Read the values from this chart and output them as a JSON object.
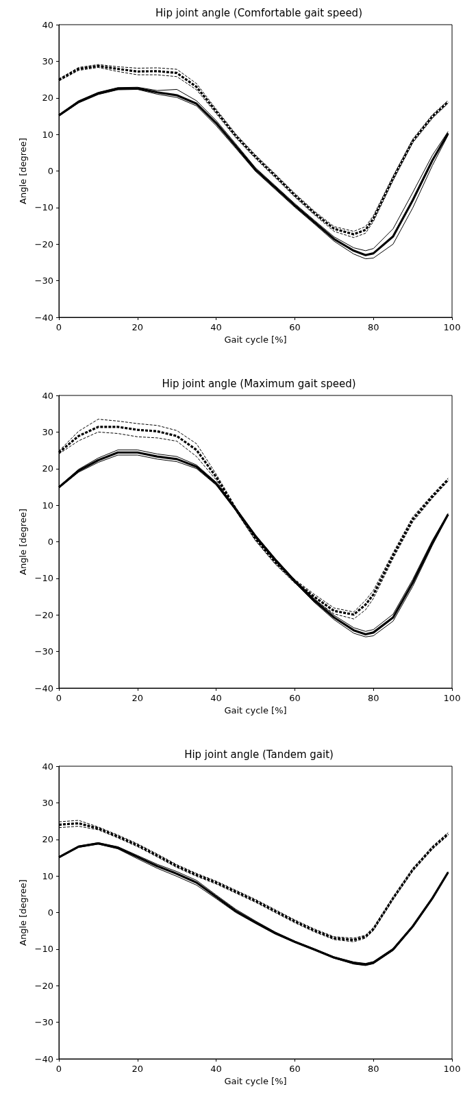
{
  "chart_data": [
    {
      "type": "line",
      "title": "Hip joint angle (Comfortable gait speed)",
      "xlabel": "Gait cycle [%]",
      "ylabel": "Angle [degree]",
      "x": [
        0,
        5,
        10,
        15,
        20,
        25,
        30,
        35,
        40,
        45,
        50,
        55,
        60,
        65,
        70,
        75,
        78,
        80,
        85,
        90,
        95,
        99
      ],
      "xlim": [
        0,
        100
      ],
      "xticks": [
        0,
        20,
        40,
        60,
        80,
        100
      ],
      "ylim": [
        -40,
        40
      ],
      "yticks": [
        -40,
        -30,
        -20,
        -10,
        0,
        10,
        20,
        30,
        40
      ],
      "marker": "none",
      "series": [
        {
          "color": "#000000",
          "line_style": "solid",
          "values": [
            15.2,
            18.9,
            21.2,
            22.5,
            22.6,
            21.5,
            20.7,
            18.4,
            13.1,
            6.8,
            0.4,
            -4.5,
            -9.4,
            -14.0,
            -18.6,
            -21.8,
            -23.0,
            -22.5,
            -17.9,
            -8.0,
            2.9,
            10.3
          ]
        },
        {
          "color": "#000000",
          "line_style": "solid",
          "values": [
            15.0,
            18.6,
            20.9,
            22.2,
            22.3,
            21.0,
            20.1,
            17.8,
            12.4,
            6.2,
            -0.1,
            -5.0,
            -9.9,
            -14.5,
            -19.2,
            -22.7,
            -24.0,
            -23.8,
            -20.0,
            -10.1,
            1.5,
            9.8
          ]
        },
        {
          "color": "#000000",
          "line_style": "solid",
          "values": [
            15.4,
            19.2,
            21.5,
            22.8,
            22.9,
            22.0,
            22.3,
            19.2,
            13.8,
            7.4,
            0.9,
            -4.0,
            -8.9,
            -13.5,
            -18.0,
            -21.0,
            -21.8,
            -21.2,
            -15.8,
            -5.9,
            4.3,
            10.8
          ]
        },
        {
          "color": "#000000",
          "line_style": "dashed",
          "values": [
            24.9,
            27.9,
            28.7,
            27.9,
            27.2,
            27.3,
            26.8,
            23.0,
            16.3,
            9.6,
            3.9,
            -1.3,
            -6.6,
            -11.5,
            -15.8,
            -17.3,
            -16.1,
            -13.0,
            -2.0,
            8.2,
            14.9,
            18.9
          ]
        },
        {
          "color": "#000000",
          "line_style": "dashed",
          "values": [
            24.6,
            27.5,
            28.3,
            27.2,
            26.3,
            26.3,
            25.8,
            22.2,
            15.7,
            9.1,
            3.4,
            -1.8,
            -7.1,
            -12.0,
            -16.5,
            -18.2,
            -17.0,
            -13.8,
            -2.6,
            7.7,
            14.4,
            18.5
          ]
        },
        {
          "color": "#000000",
          "line_style": "dashed",
          "values": [
            25.2,
            28.3,
            29.1,
            28.5,
            28.1,
            28.2,
            27.8,
            23.9,
            16.9,
            10.1,
            4.4,
            -0.8,
            -6.1,
            -11.0,
            -15.2,
            -16.5,
            -15.2,
            -12.2,
            -1.4,
            8.7,
            15.4,
            19.3
          ]
        }
      ]
    },
    {
      "type": "line",
      "title": "Hip joint angle (Maximum gait speed)",
      "xlabel": "Gait cycle [%]",
      "ylabel": "Angle [degree]",
      "x": [
        0,
        5,
        10,
        15,
        20,
        25,
        30,
        35,
        40,
        45,
        50,
        55,
        60,
        65,
        70,
        75,
        78,
        80,
        85,
        90,
        95,
        99
      ],
      "xlim": [
        0,
        100
      ],
      "xticks": [
        0,
        20,
        40,
        60,
        80,
        100
      ],
      "ylim": [
        -40,
        40
      ],
      "yticks": [
        -40,
        -30,
        -20,
        -10,
        0,
        10,
        20,
        30,
        40
      ],
      "marker": "none",
      "series": [
        {
          "color": "#000000",
          "line_style": "solid",
          "values": [
            14.9,
            19.4,
            22.3,
            24.4,
            24.4,
            23.3,
            22.6,
            20.5,
            15.9,
            8.9,
            1.5,
            -4.9,
            -10.8,
            -16.1,
            -20.7,
            -24.2,
            -25.3,
            -24.8,
            -20.7,
            -11.2,
            -0.3,
            7.5
          ]
        },
        {
          "color": "#000000",
          "line_style": "solid",
          "values": [
            14.7,
            19.0,
            21.7,
            23.7,
            23.7,
            22.6,
            21.9,
            20.0,
            15.5,
            8.5,
            1.1,
            -5.3,
            -11.2,
            -16.6,
            -21.3,
            -25.0,
            -26.0,
            -25.7,
            -21.7,
            -12.2,
            -1.0,
            7.2
          ]
        },
        {
          "color": "#000000",
          "line_style": "solid",
          "values": [
            15.1,
            19.8,
            22.9,
            25.1,
            25.1,
            24.0,
            23.3,
            21.0,
            16.3,
            9.3,
            1.9,
            -4.5,
            -10.4,
            -15.6,
            -20.1,
            -23.5,
            -24.5,
            -24.0,
            -19.8,
            -10.3,
            0.4,
            7.8
          ]
        },
        {
          "color": "#000000",
          "line_style": "dashed",
          "values": [
            24.4,
            28.9,
            31.4,
            31.4,
            30.6,
            30.2,
            28.9,
            25.1,
            17.7,
            8.9,
            0.8,
            -5.6,
            -10.8,
            -15.1,
            -18.9,
            -19.9,
            -17.2,
            -14.4,
            -3.8,
            6.1,
            12.4,
            17.0
          ]
        },
        {
          "color": "#000000",
          "line_style": "dashed",
          "values": [
            24.0,
            27.6,
            30.0,
            29.6,
            28.7,
            28.4,
            27.5,
            23.3,
            16.9,
            8.4,
            0.3,
            -6.1,
            -11.3,
            -15.8,
            -19.7,
            -21.1,
            -18.6,
            -15.5,
            -4.6,
            5.4,
            11.9,
            16.6
          ]
        },
        {
          "color": "#000000",
          "line_style": "dashed",
          "values": [
            24.8,
            30.2,
            33.5,
            33.0,
            32.3,
            31.8,
            30.4,
            26.8,
            18.5,
            9.4,
            1.3,
            -5.1,
            -10.3,
            -14.4,
            -18.1,
            -19.2,
            -16.0,
            -13.3,
            -3.0,
            6.8,
            12.9,
            17.4
          ]
        }
      ]
    },
    {
      "type": "line",
      "title": "Hip joint angle (Tandem gait)",
      "xlabel": "Gait cycle [%]",
      "ylabel": "Angle [degree]",
      "x": [
        0,
        5,
        10,
        15,
        20,
        25,
        30,
        35,
        40,
        45,
        50,
        55,
        60,
        65,
        70,
        75,
        78,
        80,
        85,
        90,
        95,
        99
      ],
      "xlim": [
        0,
        100
      ],
      "xticks": [
        0,
        20,
        40,
        60,
        80,
        100
      ],
      "ylim": [
        -40,
        40
      ],
      "yticks": [
        -40,
        -30,
        -20,
        -10,
        0,
        10,
        20,
        30,
        40
      ],
      "marker": "none",
      "series": [
        {
          "color": "#000000",
          "line_style": "solid",
          "values": [
            15.1,
            18.0,
            18.9,
            17.7,
            15.2,
            12.7,
            10.6,
            8.2,
            4.3,
            0.4,
            -2.7,
            -5.6,
            -8.0,
            -10.1,
            -12.3,
            -13.8,
            -14.2,
            -13.7,
            -10.1,
            -3.8,
            3.9,
            11.0
          ]
        },
        {
          "color": "#000000",
          "line_style": "solid",
          "values": [
            14.9,
            17.8,
            18.7,
            17.4,
            14.7,
            12.1,
            9.9,
            7.5,
            3.8,
            0.0,
            -3.0,
            -5.9,
            -8.2,
            -10.3,
            -12.5,
            -14.1,
            -14.5,
            -14.0,
            -10.4,
            -4.1,
            3.6,
            10.8
          ]
        },
        {
          "color": "#000000",
          "line_style": "solid",
          "values": [
            15.3,
            18.2,
            19.1,
            18.0,
            15.6,
            13.2,
            11.2,
            8.8,
            4.8,
            0.9,
            -2.3,
            -5.3,
            -7.8,
            -9.9,
            -12.1,
            -13.5,
            -13.9,
            -13.4,
            -9.8,
            -3.5,
            4.2,
            11.2
          ]
        },
        {
          "color": "#000000",
          "line_style": "dashed",
          "values": [
            24.0,
            24.4,
            23.0,
            20.8,
            18.4,
            15.6,
            12.7,
            10.3,
            8.2,
            5.7,
            3.2,
            0.4,
            -2.4,
            -4.9,
            -7.0,
            -7.5,
            -6.6,
            -4.5,
            3.9,
            11.7,
            17.7,
            21.5
          ]
        },
        {
          "color": "#000000",
          "line_style": "dashed",
          "values": [
            23.2,
            23.6,
            22.6,
            20.4,
            18.0,
            15.2,
            12.3,
            9.9,
            7.8,
            5.3,
            2.8,
            0.0,
            -2.8,
            -5.3,
            -7.4,
            -8.0,
            -7.0,
            -4.9,
            3.5,
            11.3,
            17.3,
            21.1
          ]
        },
        {
          "color": "#000000",
          "line_style": "dashed",
          "values": [
            24.8,
            25.2,
            23.4,
            21.2,
            18.8,
            16.0,
            13.1,
            10.7,
            8.6,
            6.1,
            3.6,
            0.8,
            -2.0,
            -4.5,
            -6.6,
            -7.0,
            -6.2,
            -4.1,
            4.3,
            12.1,
            18.1,
            21.9
          ]
        }
      ]
    }
  ]
}
